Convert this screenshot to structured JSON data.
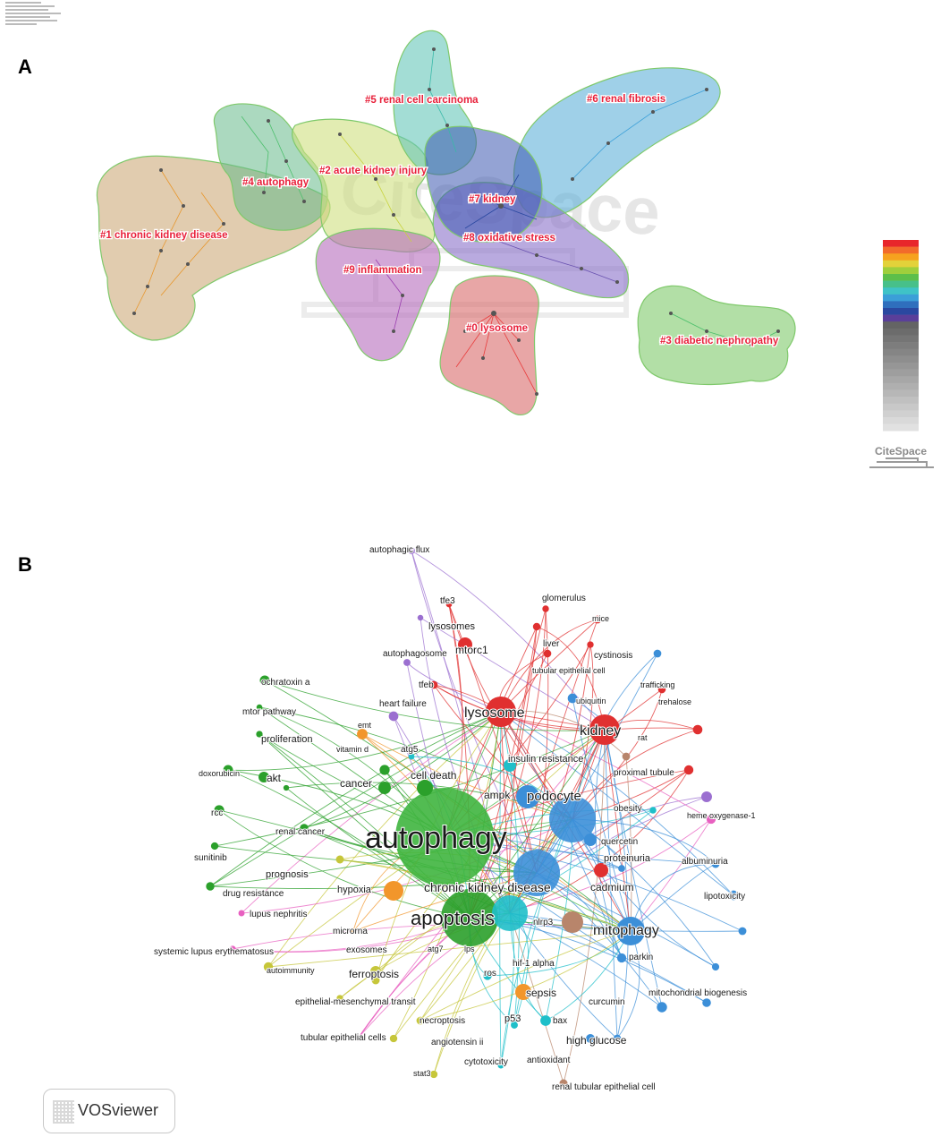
{
  "panel_a": {
    "letter": "A",
    "watermark": "CiteSpace",
    "logo_text": "CiteSpace",
    "clusters": [
      {
        "id": "c0",
        "label": "#0 lysosome",
        "color": "#d96a6a"
      },
      {
        "id": "c1",
        "label": "#1 chronic kidney disease",
        "color": "#c9a26d"
      },
      {
        "id": "c2",
        "label": "#2 acute kidney injury",
        "color": "#cfe07e"
      },
      {
        "id": "c3",
        "label": "#3 diabetic nephropathy",
        "color": "#7fc96b"
      },
      {
        "id": "c4",
        "label": "#4 autophagy",
        "color": "#66b98a"
      },
      {
        "id": "c5",
        "label": "#5 renal cell carcinoma",
        "color": "#66c7b9"
      },
      {
        "id": "c6",
        "label": "#6 renal fibrosis",
        "color": "#5fb0d8"
      },
      {
        "id": "c7",
        "label": "#7 kidney",
        "color": "#3c58b0"
      },
      {
        "id": "c8",
        "label": "#8 oxidative stress",
        "color": "#8a72c9"
      },
      {
        "id": "c9",
        "label": "#9 inflammation",
        "color": "#b66dbd"
      }
    ],
    "legend_colors": [
      "#e8262b",
      "#f26b2b",
      "#f6a21f",
      "#e3d23a",
      "#9fcf3c",
      "#5cbf4a",
      "#47c08a",
      "#3fc3c7",
      "#3b9fd8",
      "#2f6fbd",
      "#2a48a0",
      "#5a3f9a"
    ]
  },
  "panel_b": {
    "letter": "B",
    "logo_text": "VOSviewer",
    "keywords": [
      {
        "id": "k1",
        "text": "autophagy",
        "size": 34,
        "color": "#3fb53f"
      },
      {
        "id": "k2",
        "text": "apoptosis",
        "size": 22,
        "color": "#2ba02b"
      },
      {
        "id": "k3",
        "text": "chronic kidney disease",
        "size": 14,
        "color": "#3c8fd8"
      },
      {
        "id": "k4",
        "text": "lysosome",
        "size": 16,
        "color": "#e03030"
      },
      {
        "id": "k5",
        "text": "kidney",
        "size": 16,
        "color": "#e03030"
      },
      {
        "id": "k6",
        "text": "mitophagy",
        "size": 16,
        "color": "#3c8fd8"
      },
      {
        "id": "k7",
        "text": "podocyte",
        "size": 15,
        "color": "#3c8fd8"
      },
      {
        "id": "k8",
        "text": "ampk",
        "size": 12,
        "color": "#3c8fd8"
      },
      {
        "id": "k9",
        "text": "cadmium",
        "size": 12,
        "color": "#1fbfc9"
      },
      {
        "id": "k10",
        "text": "sepsis",
        "size": 12,
        "color": "#f2962b"
      },
      {
        "id": "k11",
        "text": "ferroptosis",
        "size": 12,
        "color": "#c6c63a"
      },
      {
        "id": "k12",
        "text": "cancer",
        "size": 12,
        "color": "#2ba02b"
      },
      {
        "id": "k13",
        "text": "cell death",
        "size": 12,
        "color": "#2ba02b"
      },
      {
        "id": "k14",
        "text": "hypoxia",
        "size": 11,
        "color": "#f2962b"
      },
      {
        "id": "k15",
        "text": "high glucose",
        "size": 12,
        "color": "#3c8fd8"
      },
      {
        "id": "k16",
        "text": "insulin resistance",
        "size": 11,
        "color": "#1fbfc9"
      },
      {
        "id": "k17",
        "text": "akt",
        "size": 12,
        "color": "#2ba02b"
      },
      {
        "id": "k18",
        "text": "proliferation",
        "size": 11,
        "color": "#2ba02b"
      },
      {
        "id": "k19",
        "text": "renal cancer",
        "size": 10,
        "color": "#2ba02b"
      },
      {
        "id": "k20",
        "text": "prognosis",
        "size": 11,
        "color": "#c6c63a"
      },
      {
        "id": "k21",
        "text": "mtorc1",
        "size": 12,
        "color": "#e03030"
      },
      {
        "id": "k22",
        "text": "lysosomes",
        "size": 11,
        "color": "#e03030"
      },
      {
        "id": "k23",
        "text": "tfe3",
        "size": 10,
        "color": "#e03030"
      },
      {
        "id": "k24",
        "text": "tfeb",
        "size": 10,
        "color": "#e03030"
      },
      {
        "id": "k25",
        "text": "glomerulus",
        "size": 10,
        "color": "#e03030"
      },
      {
        "id": "k26",
        "text": "mice",
        "size": 9,
        "color": "#e03030"
      },
      {
        "id": "k27",
        "text": "liver",
        "size": 10,
        "color": "#e03030"
      },
      {
        "id": "k28",
        "text": "cystinosis",
        "size": 10,
        "color": "#e03030"
      },
      {
        "id": "k29",
        "text": "tubular epithelial cell",
        "size": 9,
        "color": "#e03030"
      },
      {
        "id": "k30",
        "text": "ubiquitin",
        "size": 9,
        "color": "#3c8fd8"
      },
      {
        "id": "k31",
        "text": "trafficking",
        "size": 9,
        "color": "#e03030"
      },
      {
        "id": "k32",
        "text": "trehalose",
        "size": 9,
        "color": "#e03030"
      },
      {
        "id": "k33",
        "text": "rat",
        "size": 9,
        "color": "#e03030"
      },
      {
        "id": "k34",
        "text": "proximal tubule",
        "size": 10,
        "color": "#b8856b"
      },
      {
        "id": "k35",
        "text": "obesity",
        "size": 10,
        "color": "#1fbfc9"
      },
      {
        "id": "k36",
        "text": "heme oxygenase-1",
        "size": 9,
        "color": "#e860c0"
      },
      {
        "id": "k37",
        "text": "quercetin",
        "size": 10,
        "color": "#3c8fd8"
      },
      {
        "id": "k38",
        "text": "proteinuria",
        "size": 11,
        "color": "#3c8fd8"
      },
      {
        "id": "k39",
        "text": "albuminuria",
        "size": 10,
        "color": "#3c8fd8"
      },
      {
        "id": "k40",
        "text": "lipotoxicity",
        "size": 10,
        "color": "#3c8fd8"
      },
      {
        "id": "k41",
        "text": "nlrp3",
        "size": 10,
        "color": "#9b6fd0"
      },
      {
        "id": "k42",
        "text": "parkin",
        "size": 10,
        "color": "#3c8fd8"
      },
      {
        "id": "k43",
        "text": "mitochondrial biogenesis",
        "size": 10,
        "color": "#3c8fd8"
      },
      {
        "id": "k44",
        "text": "curcumin",
        "size": 10,
        "color": "#3c8fd8"
      },
      {
        "id": "k45",
        "text": "hif-1 alpha",
        "size": 10,
        "color": "#f2962b"
      },
      {
        "id": "k46",
        "text": "ros",
        "size": 10,
        "color": "#1fbfc9"
      },
      {
        "id": "k47",
        "text": "bax",
        "size": 10,
        "color": "#1fbfc9"
      },
      {
        "id": "k48",
        "text": "p53",
        "size": 11,
        "color": "#1fbfc9"
      },
      {
        "id": "k49",
        "text": "antioxidant",
        "size": 10,
        "color": "#1fbfc9"
      },
      {
        "id": "k50",
        "text": "renal tubular epithelial cell",
        "size": 10,
        "color": "#b8856b"
      },
      {
        "id": "k51",
        "text": "cytotoxicity",
        "size": 10,
        "color": "#1fbfc9"
      },
      {
        "id": "k52",
        "text": "angiotensin ii",
        "size": 10,
        "color": "#c6c63a"
      },
      {
        "id": "k53",
        "text": "necroptosis",
        "size": 10,
        "color": "#c6c63a"
      },
      {
        "id": "k54",
        "text": "stat3",
        "size": 9,
        "color": "#c6c63a"
      },
      {
        "id": "k55",
        "text": "tubular epithelial cells",
        "size": 10,
        "color": "#c6c63a"
      },
      {
        "id": "k56",
        "text": "epithelial-mesenchymal transit",
        "size": 10,
        "color": "#c6c63a"
      },
      {
        "id": "k57",
        "text": "atg7",
        "size": 9,
        "color": "#c6c63a"
      },
      {
        "id": "k58",
        "text": "lps",
        "size": 9,
        "color": "#c6c63a"
      },
      {
        "id": "k59",
        "text": "exosomes",
        "size": 10,
        "color": "#c6c63a"
      },
      {
        "id": "k60",
        "text": "microrna",
        "size": 10,
        "color": "#f2962b"
      },
      {
        "id": "k61",
        "text": "autoimmunity",
        "size": 9,
        "color": "#c6c63a"
      },
      {
        "id": "k62",
        "text": "systemic lupus erythematosus",
        "size": 10,
        "color": "#e860c0"
      },
      {
        "id": "k63",
        "text": "lupus nephritis",
        "size": 10,
        "color": "#e860c0"
      },
      {
        "id": "k64",
        "text": "drug resistance",
        "size": 10,
        "color": "#2ba02b"
      },
      {
        "id": "k65",
        "text": "sunitinib",
        "size": 10,
        "color": "#2ba02b"
      },
      {
        "id": "k66",
        "text": "rcc",
        "size": 10,
        "color": "#2ba02b"
      },
      {
        "id": "k67",
        "text": "doxorubicin",
        "size": 9,
        "color": "#2ba02b"
      },
      {
        "id": "k68",
        "text": "mtor pathway",
        "size": 10,
        "color": "#2ba02b"
      },
      {
        "id": "k69",
        "text": "ochratoxin a",
        "size": 10,
        "color": "#2ba02b"
      },
      {
        "id": "k70",
        "text": "emt",
        "size": 9,
        "color": "#f2962b"
      },
      {
        "id": "k71",
        "text": "vitamin d",
        "size": 9,
        "color": "#9b6fd0"
      },
      {
        "id": "k72",
        "text": "atg5",
        "size": 10,
        "color": "#1fbfc9"
      },
      {
        "id": "k73",
        "text": "heart failure",
        "size": 10,
        "color": "#9b6fd0"
      },
      {
        "id": "k74",
        "text": "autophagosome",
        "size": 10,
        "color": "#9b6fd0"
      },
      {
        "id": "k75",
        "text": "autophagic flux",
        "size": 10,
        "color": "#9b6fd0"
      }
    ]
  }
}
